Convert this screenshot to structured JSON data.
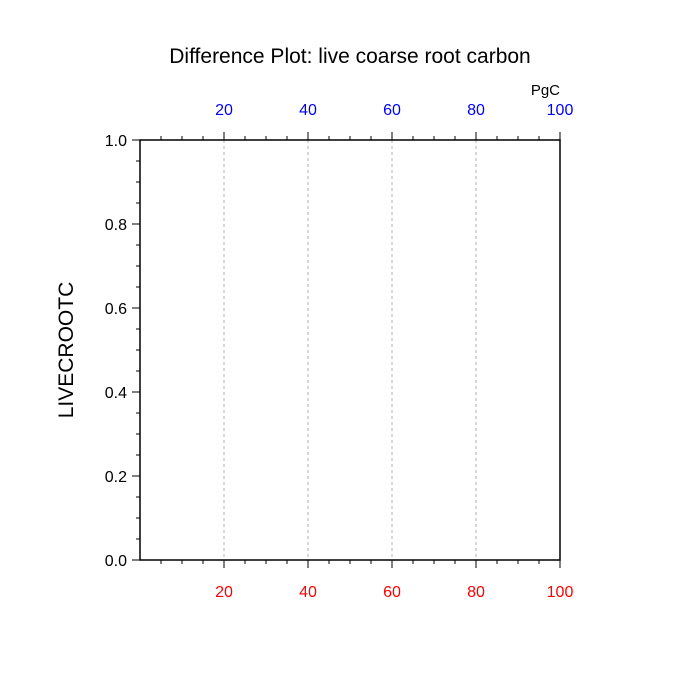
{
  "chart_data": {
    "type": "line",
    "title": "Difference Plot: live coarse root carbon",
    "ylabel": "LIVECROOTC",
    "top_axis_unit": "PgC",
    "xlim": [
      0,
      100
    ],
    "ylim": [
      0,
      1.0
    ],
    "x_ticks": [
      20,
      40,
      60,
      80,
      100
    ],
    "x_tick_labels": [
      "20",
      "40",
      "60",
      "80",
      "100"
    ],
    "y_ticks": [
      0,
      0.2,
      0.4,
      0.6,
      0.8,
      1.0
    ],
    "y_tick_labels": [
      "0.0",
      "0.2",
      "0.4",
      "0.6",
      "0.8",
      "1.0"
    ],
    "x_minor_step": 5,
    "y_minor_step": 0.05,
    "grid": "vertical dashed at major x ticks",
    "colors": {
      "bottom_tick_labels": "#ff0000",
      "top_tick_labels": "#0000ff",
      "axis": "#000000",
      "grid": "#b0b0b0"
    },
    "series": []
  }
}
